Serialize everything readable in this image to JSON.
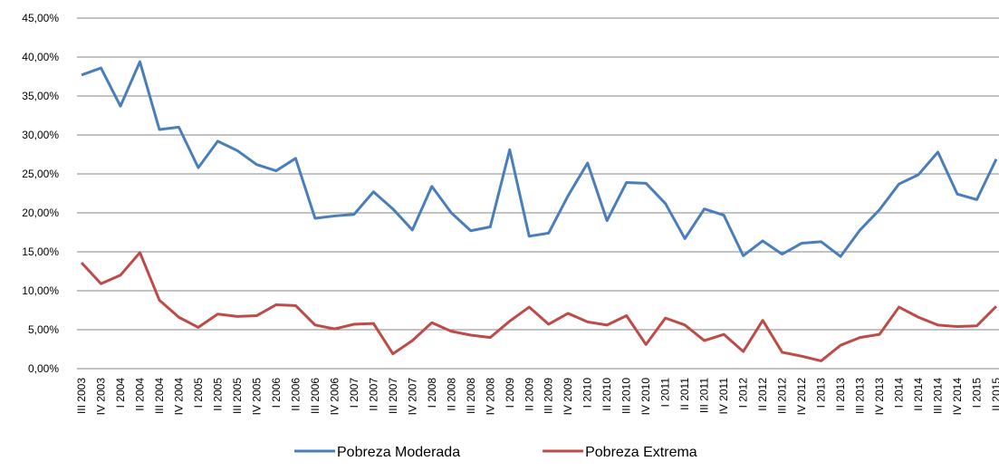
{
  "chart_data": {
    "type": "line",
    "categories": [
      "III 2003",
      "IV 2003",
      "I 2004",
      "II 2004",
      "III 2004",
      "IV 2004",
      "I 2005",
      "II 2005",
      "III 2005",
      "IV 2005",
      "I 2006",
      "II 2006",
      "III 2006",
      "IV 2006",
      "I 2007",
      "II 2007",
      "III 2007",
      "IV 2007",
      "I 2008",
      "II 2008",
      "III 2008",
      "IV 2008",
      "I 2009",
      "II 2009",
      "III 2009",
      "IV 2009",
      "I 2010",
      "II 2010",
      "III 2010",
      "IV 2010",
      "I 2011",
      "II 2011",
      "III 2011",
      "IV 2011",
      "I 2012",
      "II 2012",
      "III 2012",
      "IV 2012",
      "I 2013",
      "II 2013",
      "III 2013",
      "IV 2013",
      "I 2014",
      "II 2014",
      "III 2014",
      "IV 2014",
      "I 2015",
      "II 2015"
    ],
    "series": [
      {
        "name": "Pobreza Moderada",
        "color": "#4a7ebb",
        "values": [
          37.7,
          38.6,
          33.7,
          39.4,
          30.7,
          31.0,
          25.8,
          29.2,
          28.0,
          26.2,
          25.4,
          27.0,
          19.3,
          19.6,
          19.8,
          22.7,
          20.5,
          17.8,
          23.4,
          20.0,
          17.7,
          18.2,
          28.1,
          17.0,
          17.4,
          22.2,
          26.4,
          19.0,
          23.9,
          23.8,
          21.2,
          16.7,
          20.5,
          19.7,
          14.5,
          16.4,
          14.7,
          16.1,
          16.3,
          14.4,
          17.8,
          20.4,
          23.7,
          24.9,
          27.8,
          22.4,
          21.7,
          26.9
        ]
      },
      {
        "name": "Pobreza Extrema",
        "color": "#be4b48",
        "values": [
          13.6,
          10.9,
          12.0,
          14.9,
          8.8,
          6.6,
          5.3,
          7.0,
          6.7,
          6.8,
          8.2,
          8.1,
          5.6,
          5.1,
          5.7,
          5.8,
          1.9,
          3.6,
          5.9,
          4.8,
          4.3,
          4.0,
          6.1,
          7.9,
          5.7,
          7.1,
          6.0,
          5.6,
          6.8,
          3.1,
          6.5,
          5.6,
          3.6,
          4.4,
          2.2,
          6.2,
          2.1,
          1.6,
          1.0,
          3.0,
          4.0,
          4.4,
          7.9,
          6.6,
          5.6,
          5.4,
          5.5,
          8.0
        ]
      }
    ],
    "ylim": [
      0,
      45
    ],
    "yticks": [
      {
        "value": 0,
        "label": "0,00%"
      },
      {
        "value": 5,
        "label": "5,00%"
      },
      {
        "value": 10,
        "label": "10,00%"
      },
      {
        "value": 15,
        "label": "15,00%"
      },
      {
        "value": 20,
        "label": "20,00%"
      },
      {
        "value": 25,
        "label": "25,00%"
      },
      {
        "value": 30,
        "label": "30,00%"
      },
      {
        "value": 35,
        "label": "35,00%"
      },
      {
        "value": 40,
        "label": "40,00%"
      },
      {
        "value": 45,
        "label": "45,00%"
      }
    ],
    "grid": true,
    "legend": "bottom"
  }
}
